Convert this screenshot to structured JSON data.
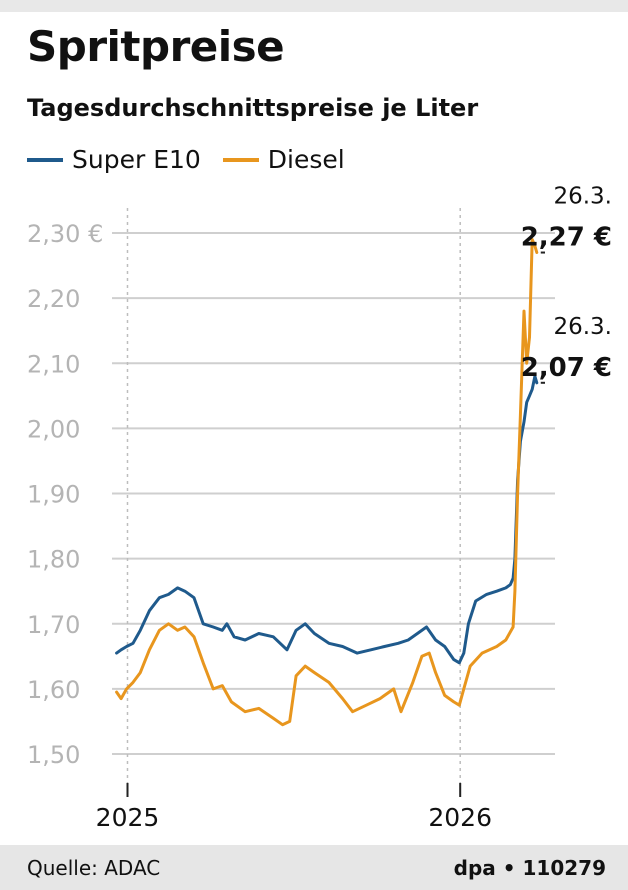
{
  "header": {
    "title": "Spritpreise",
    "subtitle": "Tagesdurchschnittspreise je Liter"
  },
  "footer": {
    "source": "Quelle: ADAC",
    "credit": "dpa • 110279"
  },
  "chart_data": {
    "type": "line",
    "title": "Spritpreise",
    "subtitle": "Tagesdurchschnittspreise je Liter",
    "xlabel": "",
    "ylabel": "",
    "ylim": [
      1.5,
      2.3
    ],
    "y_ticks": [
      1.5,
      1.6,
      1.7,
      1.8,
      1.9,
      2.0,
      2.1,
      2.2,
      2.3
    ],
    "y_tick_labels": [
      "1,50",
      "1,60",
      "1,70",
      "1,80",
      "1,90",
      "2,00",
      "2,10",
      "2,20",
      "2,30 €"
    ],
    "x_range": [
      "2024-12-15",
      "2026-04-15"
    ],
    "x_ticks": [
      "2025-01-01",
      "2026-01-01"
    ],
    "x_tick_labels": [
      "2025",
      "2026"
    ],
    "grid": "horizontal",
    "legend": "top-left",
    "series": [
      {
        "name": "Super E10",
        "color": "#1f5a8c",
        "points": [
          [
            "2024-12-20",
            1.655
          ],
          [
            "2024-12-25",
            1.66
          ],
          [
            "2024-12-31",
            1.665
          ],
          [
            "2025-01-07",
            1.67
          ],
          [
            "2025-01-15",
            1.69
          ],
          [
            "2025-01-25",
            1.72
          ],
          [
            "2025-02-05",
            1.74
          ],
          [
            "2025-02-15",
            1.745
          ],
          [
            "2025-02-25",
            1.755
          ],
          [
            "2025-03-05",
            1.75
          ],
          [
            "2025-03-15",
            1.74
          ],
          [
            "2025-03-25",
            1.7
          ],
          [
            "2025-04-05",
            1.695
          ],
          [
            "2025-04-15",
            1.69
          ],
          [
            "2025-04-20",
            1.7
          ],
          [
            "2025-04-28",
            1.68
          ],
          [
            "2025-05-10",
            1.675
          ],
          [
            "2025-05-25",
            1.685
          ],
          [
            "2025-06-10",
            1.68
          ],
          [
            "2025-06-25",
            1.66
          ],
          [
            "2025-07-05",
            1.69
          ],
          [
            "2025-07-15",
            1.7
          ],
          [
            "2025-07-25",
            1.685
          ],
          [
            "2025-08-10",
            1.67
          ],
          [
            "2025-08-25",
            1.665
          ],
          [
            "2025-09-10",
            1.655
          ],
          [
            "2025-09-25",
            1.66
          ],
          [
            "2025-10-10",
            1.665
          ],
          [
            "2025-10-25",
            1.67
          ],
          [
            "2025-11-05",
            1.675
          ],
          [
            "2025-11-15",
            1.685
          ],
          [
            "2025-11-25",
            1.695
          ],
          [
            "2025-12-05",
            1.675
          ],
          [
            "2025-12-15",
            1.665
          ],
          [
            "2025-12-25",
            1.645
          ],
          [
            "2025-12-31",
            1.64
          ],
          [
            "2026-01-05",
            1.655
          ],
          [
            "2026-01-10",
            1.7
          ],
          [
            "2026-01-18",
            1.735
          ],
          [
            "2026-01-30",
            1.745
          ],
          [
            "2026-02-10",
            1.75
          ],
          [
            "2026-02-20",
            1.755
          ],
          [
            "2026-02-25",
            1.76
          ],
          [
            "2026-02-28",
            1.77
          ],
          [
            "2026-03-02",
            1.8
          ],
          [
            "2026-03-05",
            1.92
          ],
          [
            "2026-03-08",
            1.98
          ],
          [
            "2026-03-12",
            2.01
          ],
          [
            "2026-03-15",
            2.04
          ],
          [
            "2026-03-18",
            2.05
          ],
          [
            "2026-03-21",
            2.06
          ],
          [
            "2026-03-24",
            2.08
          ],
          [
            "2026-03-26",
            2.07
          ]
        ]
      },
      {
        "name": "Diesel",
        "color": "#e8961e",
        "points": [
          [
            "2024-12-20",
            1.595
          ],
          [
            "2024-12-25",
            1.585
          ],
          [
            "2024-12-31",
            1.6
          ],
          [
            "2025-01-07",
            1.61
          ],
          [
            "2025-01-15",
            1.625
          ],
          [
            "2025-01-25",
            1.66
          ],
          [
            "2025-02-05",
            1.69
          ],
          [
            "2025-02-15",
            1.7
          ],
          [
            "2025-02-25",
            1.69
          ],
          [
            "2025-03-05",
            1.695
          ],
          [
            "2025-03-15",
            1.68
          ],
          [
            "2025-03-25",
            1.64
          ],
          [
            "2025-04-05",
            1.6
          ],
          [
            "2025-04-15",
            1.605
          ],
          [
            "2025-04-25",
            1.58
          ],
          [
            "2025-05-10",
            1.565
          ],
          [
            "2025-05-25",
            1.57
          ],
          [
            "2025-06-10",
            1.555
          ],
          [
            "2025-06-20",
            1.545
          ],
          [
            "2025-06-28",
            1.55
          ],
          [
            "2025-07-05",
            1.62
          ],
          [
            "2025-07-15",
            1.635
          ],
          [
            "2025-07-25",
            1.625
          ],
          [
            "2025-08-10",
            1.61
          ],
          [
            "2025-08-25",
            1.585
          ],
          [
            "2025-09-05",
            1.565
          ],
          [
            "2025-09-20",
            1.575
          ],
          [
            "2025-10-05",
            1.585
          ],
          [
            "2025-10-20",
            1.6
          ],
          [
            "2025-10-28",
            1.565
          ],
          [
            "2025-11-10",
            1.61
          ],
          [
            "2025-11-20",
            1.65
          ],
          [
            "2025-11-28",
            1.655
          ],
          [
            "2025-12-05",
            1.625
          ],
          [
            "2025-12-15",
            1.59
          ],
          [
            "2025-12-25",
            1.58
          ],
          [
            "2025-12-31",
            1.575
          ],
          [
            "2026-01-05",
            1.6
          ],
          [
            "2026-01-12",
            1.635
          ],
          [
            "2026-01-25",
            1.655
          ],
          [
            "2026-02-10",
            1.665
          ],
          [
            "2026-02-20",
            1.675
          ],
          [
            "2026-02-28",
            1.695
          ],
          [
            "2026-03-02",
            1.75
          ],
          [
            "2026-03-05",
            1.9
          ],
          [
            "2026-03-08",
            2.02
          ],
          [
            "2026-03-12",
            2.18
          ],
          [
            "2026-03-15",
            2.1
          ],
          [
            "2026-03-18",
            2.14
          ],
          [
            "2026-03-21",
            2.29
          ],
          [
            "2026-03-24",
            2.28
          ],
          [
            "2026-03-26",
            2.27
          ]
        ]
      }
    ],
    "annotations": [
      {
        "series": "Diesel",
        "date_label": "26.3.",
        "value_label": "2,27 €",
        "value": 2.27
      },
      {
        "series": "Super E10",
        "date_label": "26.3.",
        "value_label": "2,07 €",
        "value": 2.07
      }
    ]
  }
}
